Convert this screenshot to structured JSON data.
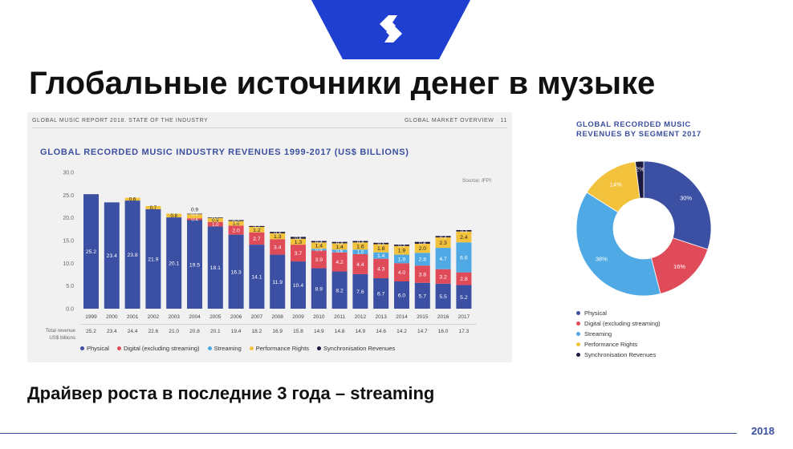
{
  "slide": {
    "title": "Глобальные источники денег в музыке",
    "subtitle": "Драйвер роста в последние 3 года – streaming",
    "year": "2018",
    "logo_icon": "stylized-s-logo-icon"
  },
  "report": {
    "left_header": "GLOBAL MUSIC REPORT 2018. STATE OF THE INDUSTRY",
    "right_header": "GLOBAL MARKET OVERVIEW",
    "separator": "·",
    "page": "11"
  },
  "colors": {
    "physical": "#3b4fa3",
    "digital": "#e04b5a",
    "streaming": "#4fa9e4",
    "performance": "#f3c23d",
    "sync": "#1a1a40",
    "brand": "#1f3fd0"
  },
  "chart_data": [
    {
      "type": "bar",
      "stacked": true,
      "title": "GLOBAL RECORDED MUSIC INDUSTRY REVENUES 1999-2017 (US$ BILLIONS)",
      "source": "Source: IFPI",
      "ylim": [
        0,
        30
      ],
      "yticks": [
        "0.0",
        "5.0",
        "10.0",
        "15.0",
        "20.0",
        "25.0",
        "30.0"
      ],
      "grid": false,
      "legend_position": "bottom",
      "categories": [
        "1999",
        "2000",
        "2001",
        "2002",
        "2003",
        "2004",
        "2005",
        "2006",
        "2007",
        "2008",
        "2009",
        "2010",
        "2011",
        "2012",
        "2013",
        "2014",
        "2015",
        "2016",
        "2017"
      ],
      "series": [
        {
          "name": "Physical",
          "color_key": "physical",
          "values": [
            25.2,
            23.4,
            23.8,
            21.9,
            20.1,
            19.5,
            18.1,
            16.3,
            14.1,
            11.9,
            10.4,
            8.9,
            8.2,
            7.6,
            6.7,
            6.0,
            5.7,
            5.5,
            5.2
          ],
          "labels": [
            "25.2",
            "23.4",
            "23.8",
            "21.9",
            "20.1",
            "19.5",
            "18.1",
            "16.3",
            "14.1",
            "11.9",
            "10.4",
            "8.9",
            "8.2",
            "7.6",
            "6.7",
            "6.0",
            "5.7",
            "5.5",
            "5.2"
          ]
        },
        {
          "name": "Digital (excluding streaming)",
          "color_key": "digital",
          "values": [
            0,
            0,
            0,
            0,
            0,
            0.4,
            1.0,
            2.0,
            2.7,
            3.4,
            3.7,
            3.9,
            4.2,
            4.4,
            4.3,
            4.0,
            3.8,
            3.2,
            2.8
          ],
          "labels": [
            "",
            "",
            "",
            "",
            "",
            "0.4",
            "1.0",
            "2.0",
            "2.7",
            "3.4",
            "3.7",
            "3.9",
            "4.2",
            "4.4",
            "4.3",
            "4.0",
            "3.8",
            "3.2",
            "2.8"
          ]
        },
        {
          "name": "Streaming",
          "color_key": "streaming",
          "values": [
            0,
            0,
            0,
            0,
            0,
            0,
            0,
            0,
            0,
            0,
            0,
            0.4,
            0.6,
            1.0,
            1.4,
            1.9,
            2.8,
            4.7,
            6.6
          ],
          "labels": [
            "",
            "",
            "",
            "",
            "",
            "",
            "",
            "",
            "",
            "",
            "",
            "0.4",
            "0.6",
            "1.0",
            "1.4",
            "1.9",
            "2.8",
            "4.7",
            "6.6"
          ]
        },
        {
          "name": "Performance Rights",
          "color_key": "performance",
          "values": [
            0,
            0,
            0.6,
            0.7,
            0.8,
            0.9,
            0.9,
            1.0,
            1.2,
            1.3,
            1.3,
            1.4,
            1.4,
            1.6,
            1.8,
            1.9,
            2.0,
            2.3,
            2.4
          ],
          "labels": [
            "",
            "",
            "0.6",
            "0.7",
            "0.8",
            "",
            "0.9",
            "1.0",
            "1.2",
            "1.3",
            "1.3",
            "1.4",
            "1.4",
            "1.6",
            "1.8",
            "1.9",
            "2.0",
            "2.3",
            "2.4"
          ]
        },
        {
          "name": "Synchronisation Revenues",
          "color_key": "sync",
          "values": [
            0,
            0,
            0,
            0,
            0,
            0.1,
            0.1,
            0.2,
            0.2,
            0.3,
            0.4,
            0.3,
            0.3,
            0.3,
            0.3,
            0.3,
            0.4,
            0.3,
            0.3
          ],
          "labels": [
            "",
            "",
            "",
            "",
            "",
            "0.1",
            "0.1",
            "0.2",
            "0.2",
            "0.3",
            "0.4",
            "0.3",
            "0.3",
            "0.3",
            "0.3",
            "0.3",
            "0.4",
            "0.3",
            "0.3"
          ]
        }
      ],
      "above_labels": [
        "",
        "",
        "",
        "",
        "",
        "0.9",
        "",
        "",
        "",
        "",
        "",
        "",
        "",
        "",
        "",
        "",
        "",
        "",
        ""
      ],
      "total_revenue": {
        "label_line1": "Total revenue",
        "label_line2": "US$ billions",
        "values": [
          "25.2",
          "23.4",
          "24.4",
          "22.6",
          "21.0",
          "20.8",
          "20.1",
          "19.4",
          "18.2",
          "16.9",
          "15.8",
          "14.9",
          "14.8",
          "14.9",
          "14.6",
          "14.2",
          "14.7",
          "16.0",
          "17.3"
        ]
      },
      "legend": [
        {
          "name": "Physical",
          "color_key": "physical"
        },
        {
          "name": "Digital (excluding streaming)",
          "color_key": "digital"
        },
        {
          "name": "Streaming",
          "color_key": "streaming"
        },
        {
          "name": "Performance Rights",
          "color_key": "performance"
        },
        {
          "name": "Synchronisation Revenues",
          "color_key": "sync"
        }
      ]
    },
    {
      "type": "pie",
      "donut": true,
      "title_line1": "GLOBAL RECORDED MUSIC",
      "title_line2": "REVENUES BY SEGMENT 2017",
      "legend_position": "bottom",
      "slices": [
        {
          "name": "Physical",
          "value": 30,
          "label": "30%",
          "color_key": "physical"
        },
        {
          "name": "Digital (excluding streaming)",
          "value": 16,
          "label": "16%",
          "color_key": "digital"
        },
        {
          "name": "Streaming",
          "value": 38,
          "label": "38%",
          "color_key": "streaming"
        },
        {
          "name": "Performance Rights",
          "value": 14,
          "label": "14%",
          "color_key": "performance"
        },
        {
          "name": "Synchronisation Revenues",
          "value": 2,
          "label": "2%",
          "color_key": "sync"
        }
      ]
    }
  ]
}
